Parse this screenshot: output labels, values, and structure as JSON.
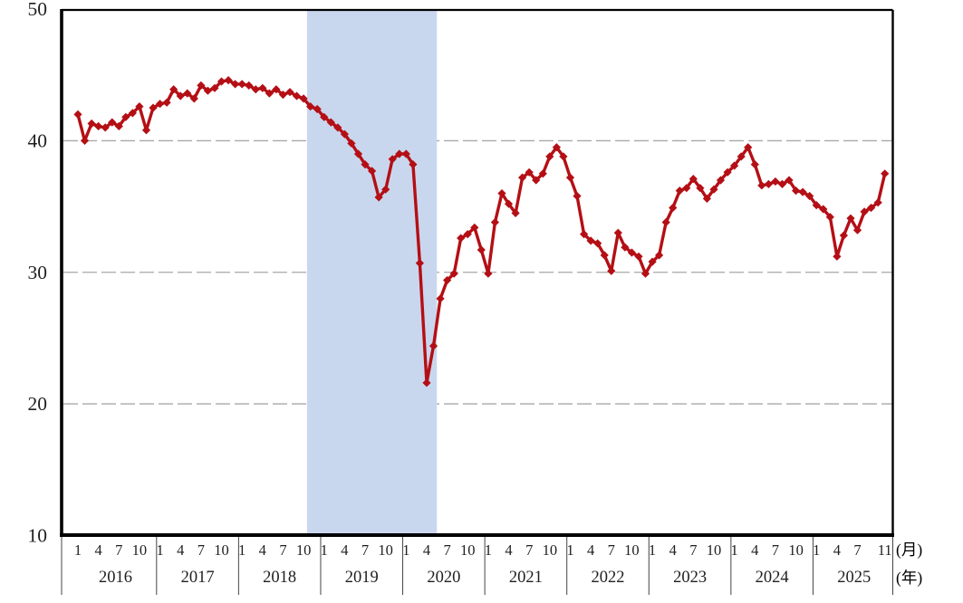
{
  "page": {
    "background": "#ffffff"
  },
  "chart_data": {
    "type": "line",
    "title": "",
    "y_axis": {
      "ticks": [
        50,
        40,
        30,
        20,
        10
      ],
      "range": [
        10,
        50
      ],
      "gridlines_at": [
        40,
        30,
        20
      ]
    },
    "x_axis": {
      "unit_month_suffix": "(月)",
      "unit_year_suffix": "(年)",
      "years": [
        {
          "label": "2016",
          "month_labels": [
            "1",
            "4",
            "7",
            "10"
          ],
          "month_offsets": [
            0,
            3,
            6,
            9
          ]
        },
        {
          "label": "2017",
          "month_labels": [
            "1",
            "4",
            "7",
            "10"
          ],
          "month_offsets": [
            0,
            3,
            6,
            9
          ]
        },
        {
          "label": "2018",
          "month_labels": [
            "1",
            "4",
            "7",
            "10"
          ],
          "month_offsets": [
            0,
            3,
            6,
            9
          ]
        },
        {
          "label": "2019",
          "month_labels": [
            "1",
            "4",
            "7",
            "10"
          ],
          "month_offsets": [
            0,
            3,
            6,
            9
          ]
        },
        {
          "label": "2020",
          "month_labels": [
            "1",
            "4",
            "7",
            "10"
          ],
          "month_offsets": [
            0,
            3,
            6,
            9
          ]
        },
        {
          "label": "2021",
          "month_labels": [
            "1",
            "4",
            "7",
            "10"
          ],
          "month_offsets": [
            0,
            3,
            6,
            9
          ]
        },
        {
          "label": "2022",
          "month_labels": [
            "1",
            "4",
            "7",
            "10"
          ],
          "month_offsets": [
            0,
            3,
            6,
            9
          ]
        },
        {
          "label": "2023",
          "month_labels": [
            "1",
            "4",
            "7",
            "10"
          ],
          "month_offsets": [
            0,
            3,
            6,
            9
          ]
        },
        {
          "label": "2024",
          "month_labels": [
            "1",
            "4",
            "7",
            "10"
          ],
          "month_offsets": [
            0,
            3,
            6,
            9
          ]
        },
        {
          "label": "2025",
          "month_labels": [
            "1",
            "4",
            "7",
            "11"
          ],
          "month_offsets": [
            0,
            3,
            6,
            10
          ]
        }
      ]
    },
    "recession_band": {
      "start": "2018-11",
      "end": "2020-05",
      "color": "#c9d7ee"
    },
    "series": [
      {
        "name": "monthly-index",
        "color": "#b40f15",
        "marker": "diamond",
        "start": "2016-01",
        "values": [
          42.0,
          40.0,
          41.3,
          41.1,
          41.0,
          41.4,
          41.1,
          41.8,
          42.1,
          42.6,
          40.8,
          42.5,
          42.8,
          42.9,
          43.9,
          43.4,
          43.6,
          43.2,
          44.2,
          43.8,
          44.0,
          44.5,
          44.6,
          44.3,
          44.3,
          44.2,
          43.9,
          44.0,
          43.6,
          43.9,
          43.5,
          43.7,
          43.4,
          43.2,
          42.6,
          42.4,
          41.8,
          41.4,
          41.0,
          40.5,
          39.8,
          39.0,
          38.2,
          37.7,
          35.7,
          36.3,
          38.6,
          39.0,
          39.0,
          38.2,
          30.7,
          21.6,
          24.4,
          28.0,
          29.4,
          29.9,
          32.6,
          32.9,
          33.4,
          31.7,
          29.9,
          33.8,
          36.0,
          35.2,
          34.5,
          37.2,
          37.6,
          37.0,
          37.5,
          38.8,
          39.5,
          38.8,
          37.2,
          35.8,
          32.9,
          32.4,
          32.2,
          31.3,
          30.1,
          33.0,
          31.9,
          31.5,
          31.2,
          29.9,
          30.8,
          31.3,
          33.8,
          34.9,
          36.2,
          36.4,
          37.1,
          36.4,
          35.6,
          36.3,
          37.0,
          37.6,
          38.1,
          38.8,
          39.5,
          38.2,
          36.6,
          36.7,
          36.9,
          36.7,
          37.0,
          36.2,
          36.1,
          35.8,
          35.1,
          34.8,
          34.2,
          31.2,
          32.8,
          34.1,
          33.2,
          34.6,
          34.9,
          35.3,
          37.5
        ]
      }
    ],
    "grid_color": "#a8a8a8",
    "axis_color": "#000000",
    "label_color": "#1f1f1f"
  }
}
